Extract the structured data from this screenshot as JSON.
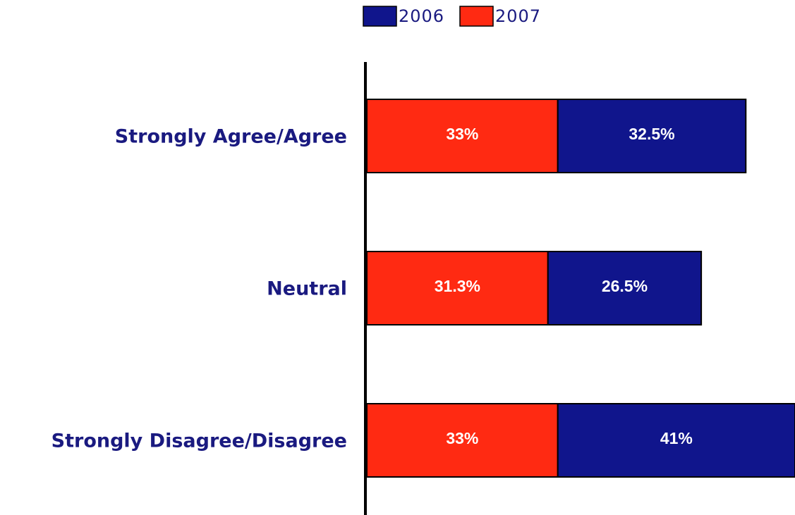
{
  "chart_data": {
    "type": "bar",
    "orientation": "horizontal",
    "stacked": true,
    "title": "",
    "xlabel": "",
    "ylabel": "",
    "categories": [
      "Strongly Agree/Agree",
      "Neutral",
      "Strongly Disagree/Disagree"
    ],
    "series": [
      {
        "name": "2007",
        "color": "#ff2a12",
        "values": [
          33,
          31.3,
          33
        ],
        "labels": [
          "33%",
          "31.3%",
          "33%"
        ]
      },
      {
        "name": "2006",
        "color": "#10158c",
        "values": [
          32.5,
          26.5,
          41
        ],
        "labels": [
          "32.5%",
          "26.5%",
          "41%"
        ]
      }
    ],
    "legend": {
      "position": "top",
      "order": [
        "2006",
        "2007"
      ]
    },
    "grid": false,
    "xlim": [
      0,
      74
    ]
  }
}
